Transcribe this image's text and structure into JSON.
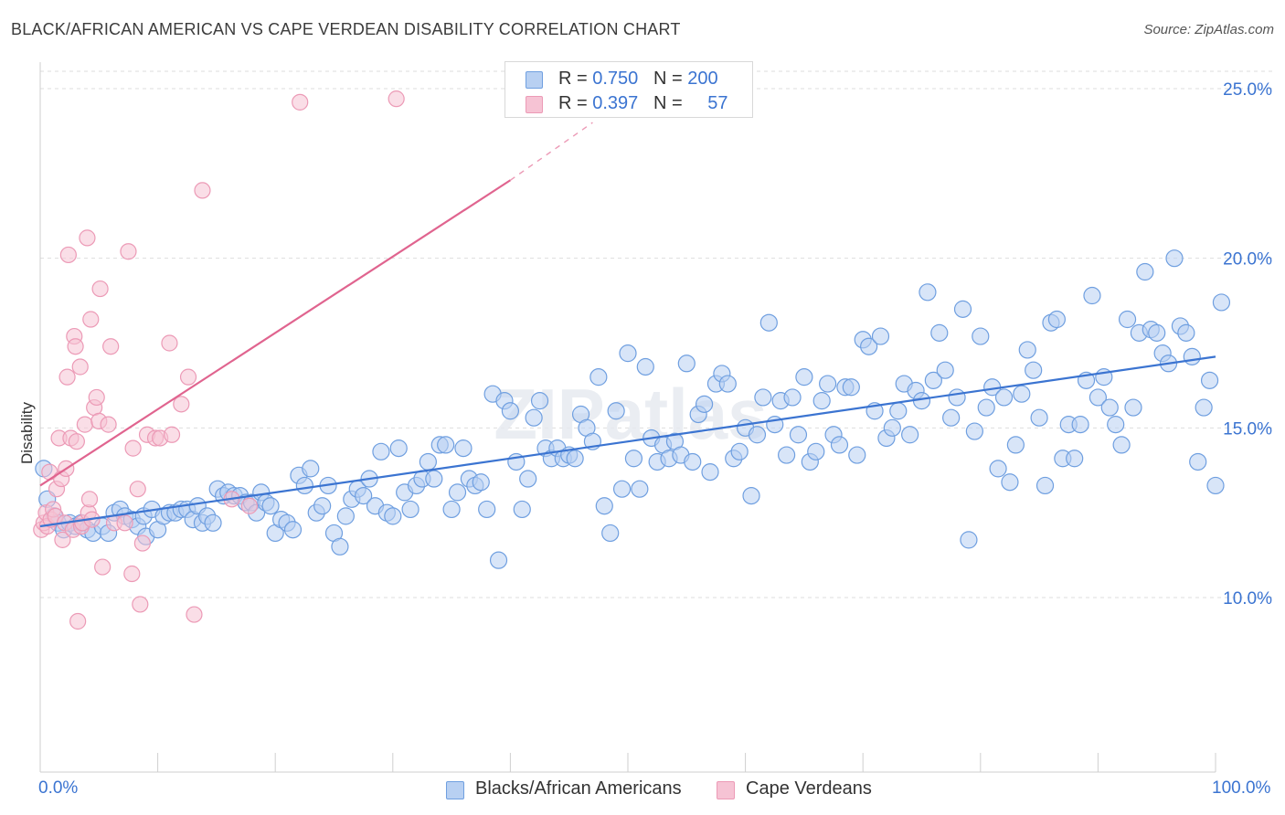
{
  "title": "BLACK/AFRICAN AMERICAN VS CAPE VERDEAN DISABILITY CORRELATION CHART",
  "source": "Source: ZipAtlas.com",
  "watermark": "ZIPatlas",
  "colors": {
    "blue": "#3b74d1",
    "blue_fill": "#b8d0f2",
    "blue_stroke": "#6f9fe0",
    "pink": "#e0648f",
    "pink_fill": "#f6c3d4",
    "pink_stroke": "#ec9ab6",
    "grid": "#dedede"
  },
  "legend_top": {
    "rows": [
      {
        "r_label": "R = ",
        "r_value": "0.750",
        "n_label": "N = ",
        "n_value": "200"
      },
      {
        "r_label": "R = ",
        "r_value": "0.397",
        "n_label": "N = ",
        "n_value": "57"
      }
    ]
  },
  "legend_bottom": [
    {
      "label": "Blacks/African Americans"
    },
    {
      "label": "Cape Verdeans"
    }
  ],
  "chart_data": {
    "type": "scatter",
    "title": "BLACK/AFRICAN AMERICAN VS CAPE VERDEAN DISABILITY CORRELATION CHART",
    "xlabel": "",
    "ylabel": "Disability",
    "xlim": [
      0,
      100
    ],
    "ylim": [
      5.0,
      26.0
    ],
    "x_tick_labels": [
      "0.0%",
      "100.0%"
    ],
    "y_ticks": [
      10.0,
      15.0,
      20.0,
      25.0
    ],
    "y_tick_labels": [
      "10.0%",
      "15.0%",
      "20.0%",
      "25.0%"
    ],
    "grid": true,
    "legend_placement": "top-center",
    "series": [
      {
        "name": "Blacks/African Americans",
        "color": "#3b74d1",
        "trend": {
          "x0": 0,
          "y0": 12.1,
          "x1": 100,
          "y1": 17.1
        },
        "points": [
          [
            0.3,
            13.8
          ],
          [
            0.6,
            12.9
          ],
          [
            1.2,
            12.4
          ],
          [
            1.5,
            12.2
          ],
          [
            2.0,
            12.0
          ],
          [
            2.5,
            12.2
          ],
          [
            3.0,
            12.1
          ],
          [
            3.5,
            12.2
          ],
          [
            4.0,
            12.0
          ],
          [
            4.5,
            11.9
          ],
          [
            5.3,
            12.1
          ],
          [
            5.8,
            11.9
          ],
          [
            6.3,
            12.5
          ],
          [
            6.8,
            12.6
          ],
          [
            7.2,
            12.4
          ],
          [
            7.8,
            12.3
          ],
          [
            8.3,
            12.1
          ],
          [
            8.8,
            12.4
          ],
          [
            9.0,
            11.8
          ],
          [
            9.5,
            12.6
          ],
          [
            10.0,
            12.0
          ],
          [
            10.5,
            12.4
          ],
          [
            11.0,
            12.5
          ],
          [
            11.5,
            12.5
          ],
          [
            12.0,
            12.6
          ],
          [
            12.5,
            12.6
          ],
          [
            13.0,
            12.3
          ],
          [
            13.4,
            12.7
          ],
          [
            13.8,
            12.2
          ],
          [
            14.2,
            12.4
          ],
          [
            14.7,
            12.2
          ],
          [
            15.1,
            13.2
          ],
          [
            15.6,
            13.0
          ],
          [
            16.0,
            13.1
          ],
          [
            16.5,
            13.0
          ],
          [
            17.0,
            13.0
          ],
          [
            17.5,
            12.8
          ],
          [
            18.0,
            12.8
          ],
          [
            18.4,
            12.5
          ],
          [
            18.8,
            13.1
          ],
          [
            19.2,
            12.8
          ],
          [
            19.6,
            12.7
          ],
          [
            20.0,
            11.9
          ],
          [
            20.5,
            12.3
          ],
          [
            21.0,
            12.2
          ],
          [
            21.5,
            12.0
          ],
          [
            22.0,
            13.6
          ],
          [
            22.5,
            13.3
          ],
          [
            23.0,
            13.8
          ],
          [
            23.5,
            12.5
          ],
          [
            24.0,
            12.7
          ],
          [
            24.5,
            13.3
          ],
          [
            25.0,
            11.9
          ],
          [
            25.5,
            11.5
          ],
          [
            26.0,
            12.4
          ],
          [
            26.5,
            12.9
          ],
          [
            27.0,
            13.2
          ],
          [
            27.5,
            13.0
          ],
          [
            28.0,
            13.5
          ],
          [
            28.5,
            12.7
          ],
          [
            29.0,
            14.3
          ],
          [
            29.5,
            12.5
          ],
          [
            30.0,
            12.4
          ],
          [
            30.5,
            14.4
          ],
          [
            31.0,
            13.1
          ],
          [
            31.5,
            12.6
          ],
          [
            32.0,
            13.3
          ],
          [
            32.5,
            13.5
          ],
          [
            33.0,
            14.0
          ],
          [
            33.5,
            13.5
          ],
          [
            34.0,
            14.5
          ],
          [
            34.5,
            14.5
          ],
          [
            35.0,
            12.6
          ],
          [
            35.5,
            13.1
          ],
          [
            36.0,
            14.4
          ],
          [
            36.5,
            13.5
          ],
          [
            37.0,
            13.3
          ],
          [
            37.5,
            13.4
          ],
          [
            38.0,
            12.6
          ],
          [
            38.5,
            16.0
          ],
          [
            39.0,
            11.1
          ],
          [
            39.5,
            15.8
          ],
          [
            40.0,
            15.5
          ],
          [
            40.5,
            14.0
          ],
          [
            41.0,
            12.6
          ],
          [
            41.5,
            13.5
          ],
          [
            42.0,
            15.3
          ],
          [
            42.5,
            15.8
          ],
          [
            43.0,
            14.4
          ],
          [
            43.5,
            14.1
          ],
          [
            44.0,
            14.4
          ],
          [
            44.5,
            14.1
          ],
          [
            45.0,
            14.2
          ],
          [
            45.5,
            14.1
          ],
          [
            46.0,
            15.4
          ],
          [
            46.5,
            15.0
          ],
          [
            47.0,
            14.6
          ],
          [
            47.5,
            16.5
          ],
          [
            48.0,
            12.7
          ],
          [
            48.5,
            11.9
          ],
          [
            49.0,
            15.5
          ],
          [
            49.5,
            13.2
          ],
          [
            50.0,
            17.2
          ],
          [
            50.5,
            14.1
          ],
          [
            51.0,
            13.2
          ],
          [
            51.5,
            16.8
          ],
          [
            52.0,
            14.7
          ],
          [
            52.5,
            14.0
          ],
          [
            53.0,
            14.5
          ],
          [
            53.5,
            14.1
          ],
          [
            54.0,
            14.6
          ],
          [
            54.5,
            14.2
          ],
          [
            55.0,
            16.9
          ],
          [
            55.5,
            14.0
          ],
          [
            56.0,
            15.4
          ],
          [
            56.5,
            15.7
          ],
          [
            57.0,
            13.7
          ],
          [
            57.5,
            16.3
          ],
          [
            58.0,
            16.6
          ],
          [
            58.5,
            16.3
          ],
          [
            59.0,
            14.1
          ],
          [
            59.5,
            14.3
          ],
          [
            60.0,
            15.0
          ],
          [
            60.5,
            13.0
          ],
          [
            61.0,
            14.8
          ],
          [
            61.5,
            15.9
          ],
          [
            62.0,
            18.1
          ],
          [
            62.5,
            15.1
          ],
          [
            63.0,
            15.8
          ],
          [
            63.5,
            14.2
          ],
          [
            64.0,
            15.9
          ],
          [
            64.5,
            14.8
          ],
          [
            65.0,
            16.5
          ],
          [
            65.5,
            14.0
          ],
          [
            66.0,
            14.3
          ],
          [
            66.5,
            15.8
          ],
          [
            67.0,
            16.3
          ],
          [
            67.5,
            14.8
          ],
          [
            68.0,
            14.5
          ],
          [
            68.5,
            16.2
          ],
          [
            69.0,
            16.2
          ],
          [
            69.5,
            14.2
          ],
          [
            70.0,
            17.6
          ],
          [
            70.5,
            17.4
          ],
          [
            71.0,
            15.5
          ],
          [
            71.5,
            17.7
          ],
          [
            72.0,
            14.7
          ],
          [
            72.5,
            15.0
          ],
          [
            73.0,
            15.5
          ],
          [
            73.5,
            16.3
          ],
          [
            74.0,
            14.8
          ],
          [
            74.5,
            16.1
          ],
          [
            75.0,
            15.8
          ],
          [
            75.5,
            19.0
          ],
          [
            76.0,
            16.4
          ],
          [
            76.5,
            17.8
          ],
          [
            77.0,
            16.7
          ],
          [
            77.5,
            15.3
          ],
          [
            78.0,
            15.9
          ],
          [
            78.5,
            18.5
          ],
          [
            79.0,
            11.7
          ],
          [
            79.5,
            14.9
          ],
          [
            80.0,
            17.7
          ],
          [
            80.5,
            15.6
          ],
          [
            81.0,
            16.2
          ],
          [
            81.5,
            13.8
          ],
          [
            82.0,
            15.9
          ],
          [
            82.5,
            13.4
          ],
          [
            83.0,
            14.5
          ],
          [
            83.5,
            16.0
          ],
          [
            84.0,
            17.3
          ],
          [
            84.5,
            16.7
          ],
          [
            85.0,
            15.3
          ],
          [
            85.5,
            13.3
          ],
          [
            86.0,
            18.1
          ],
          [
            86.5,
            18.2
          ],
          [
            87.0,
            14.1
          ],
          [
            87.5,
            15.1
          ],
          [
            88.0,
            14.1
          ],
          [
            88.5,
            15.1
          ],
          [
            89.0,
            16.4
          ],
          [
            89.5,
            18.9
          ],
          [
            90.0,
            15.9
          ],
          [
            90.5,
            16.5
          ],
          [
            91.0,
            15.6
          ],
          [
            91.5,
            15.1
          ],
          [
            92.0,
            14.5
          ],
          [
            92.5,
            18.2
          ],
          [
            93.0,
            15.6
          ],
          [
            93.5,
            17.8
          ],
          [
            94.0,
            19.6
          ],
          [
            94.5,
            17.9
          ],
          [
            95.0,
            17.8
          ],
          [
            95.5,
            17.2
          ],
          [
            96.0,
            16.9
          ],
          [
            96.5,
            20.0
          ],
          [
            97.0,
            18.0
          ],
          [
            97.5,
            17.8
          ],
          [
            98.0,
            17.1
          ],
          [
            98.5,
            14.0
          ],
          [
            99.0,
            15.6
          ],
          [
            99.5,
            16.4
          ],
          [
            100.0,
            13.3
          ],
          [
            100.5,
            18.7
          ]
        ]
      },
      {
        "name": "Cape Verdeans",
        "color": "#e0648f",
        "trend": {
          "x0": 0,
          "y0": 13.3,
          "x1": 40,
          "y1": 22.3,
          "dashed_to": {
            "x": 47,
            "y": 24.0
          }
        },
        "points": [
          [
            0.1,
            12.0
          ],
          [
            0.3,
            12.2
          ],
          [
            0.5,
            12.5
          ],
          [
            0.6,
            12.1
          ],
          [
            0.8,
            13.7
          ],
          [
            0.9,
            12.3
          ],
          [
            1.1,
            12.6
          ],
          [
            1.3,
            12.4
          ],
          [
            1.4,
            13.2
          ],
          [
            1.6,
            14.7
          ],
          [
            1.8,
            13.5
          ],
          [
            1.9,
            11.7
          ],
          [
            2.1,
            12.2
          ],
          [
            2.2,
            13.8
          ],
          [
            2.3,
            16.5
          ],
          [
            2.4,
            20.1
          ],
          [
            2.6,
            14.7
          ],
          [
            2.8,
            12.0
          ],
          [
            2.9,
            17.7
          ],
          [
            3.0,
            17.4
          ],
          [
            3.1,
            14.6
          ],
          [
            3.2,
            9.3
          ],
          [
            3.4,
            16.8
          ],
          [
            3.5,
            12.1
          ],
          [
            3.6,
            12.2
          ],
          [
            3.8,
            15.1
          ],
          [
            4.0,
            20.6
          ],
          [
            4.1,
            12.5
          ],
          [
            4.2,
            12.9
          ],
          [
            4.3,
            18.2
          ],
          [
            4.4,
            12.3
          ],
          [
            4.6,
            15.6
          ],
          [
            4.8,
            15.9
          ],
          [
            5.0,
            15.2
          ],
          [
            5.1,
            19.1
          ],
          [
            5.3,
            10.9
          ],
          [
            5.8,
            15.1
          ],
          [
            6.0,
            17.4
          ],
          [
            6.3,
            12.2
          ],
          [
            7.2,
            12.2
          ],
          [
            7.5,
            20.2
          ],
          [
            7.8,
            10.7
          ],
          [
            7.9,
            14.4
          ],
          [
            8.3,
            13.2
          ],
          [
            8.5,
            9.8
          ],
          [
            8.7,
            11.6
          ],
          [
            9.1,
            14.8
          ],
          [
            9.8,
            14.7
          ],
          [
            10.2,
            14.7
          ],
          [
            11.0,
            17.5
          ],
          [
            11.2,
            14.8
          ],
          [
            12.0,
            15.7
          ],
          [
            12.6,
            16.5
          ],
          [
            13.1,
            9.5
          ],
          [
            13.8,
            22.0
          ],
          [
            16.3,
            12.9
          ],
          [
            17.8,
            12.7
          ],
          [
            22.1,
            24.6
          ],
          [
            30.3,
            24.7
          ]
        ]
      }
    ]
  }
}
